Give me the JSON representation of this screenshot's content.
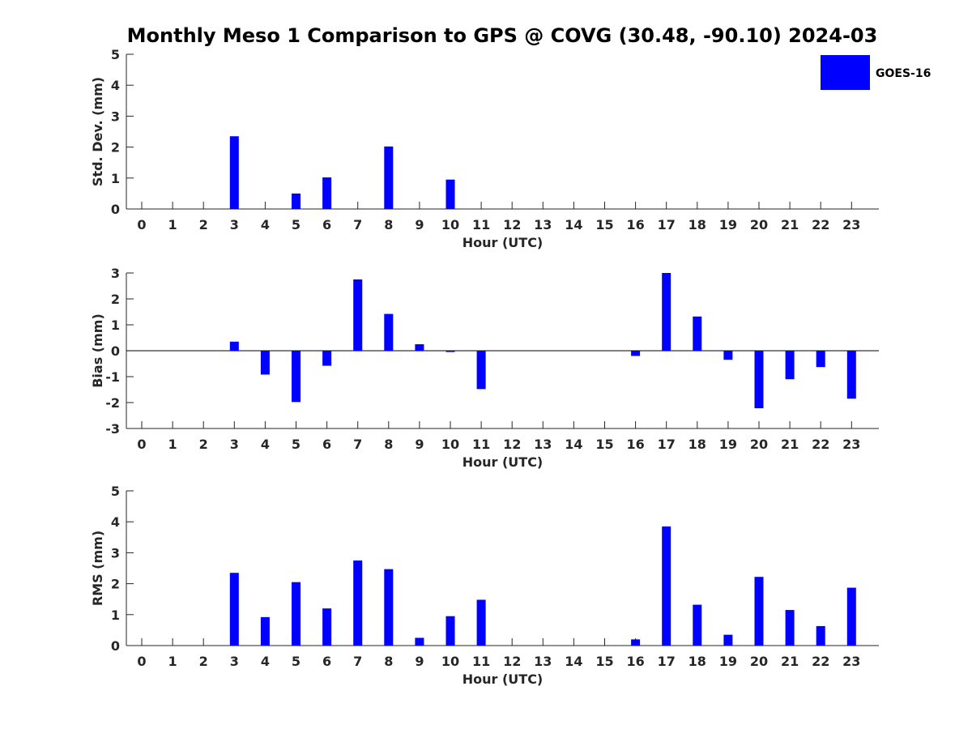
{
  "title": "Monthly Meso 1 Comparison to GPS @ COVG (30.48, -90.10) 2024-03",
  "legend": {
    "label": "GOES-16",
    "color": "#0000ff"
  },
  "chart_data": [
    {
      "type": "bar",
      "xlabel": "Hour (UTC)",
      "ylabel": "Std. Dev. (mm)",
      "ylim": [
        0,
        5
      ],
      "yticks": [
        0,
        1,
        2,
        3,
        4,
        5
      ],
      "categories": [
        "0",
        "1",
        "2",
        "3",
        "4",
        "5",
        "6",
        "7",
        "8",
        "9",
        "10",
        "11",
        "12",
        "13",
        "14",
        "15",
        "16",
        "17",
        "18",
        "19",
        "20",
        "21",
        "22",
        "23"
      ],
      "series": [
        {
          "name": "GOES-16",
          "values": [
            0,
            0,
            0,
            2.35,
            0,
            0.5,
            1.02,
            0,
            2.02,
            0,
            0.95,
            0,
            0,
            0,
            0,
            0,
            0,
            0,
            0,
            0,
            0,
            0,
            0,
            0
          ]
        }
      ]
    },
    {
      "type": "bar",
      "xlabel": "Hour (UTC)",
      "ylabel": "Bias (mm)",
      "ylim": [
        -3,
        3
      ],
      "yticks": [
        -3,
        -2,
        -1,
        0,
        1,
        2,
        3
      ],
      "categories": [
        "0",
        "1",
        "2",
        "3",
        "4",
        "5",
        "6",
        "7",
        "8",
        "9",
        "10",
        "11",
        "12",
        "13",
        "14",
        "15",
        "16",
        "17",
        "18",
        "19",
        "20",
        "21",
        "22",
        "23"
      ],
      "series": [
        {
          "name": "GOES-16",
          "values": [
            0,
            0,
            0,
            0.35,
            -0.92,
            -1.98,
            -0.58,
            2.75,
            1.42,
            0.25,
            -0.05,
            -1.48,
            0,
            0,
            0,
            0,
            -0.2,
            3.0,
            1.32,
            -0.35,
            -2.22,
            -1.1,
            -0.63,
            -1.85
          ]
        }
      ]
    },
    {
      "type": "bar",
      "xlabel": "Hour (UTC)",
      "ylabel": "RMS (mm)",
      "ylim": [
        0,
        5
      ],
      "yticks": [
        0,
        1,
        2,
        3,
        4,
        5
      ],
      "categories": [
        "0",
        "1",
        "2",
        "3",
        "4",
        "5",
        "6",
        "7",
        "8",
        "9",
        "10",
        "11",
        "12",
        "13",
        "14",
        "15",
        "16",
        "17",
        "18",
        "19",
        "20",
        "21",
        "22",
        "23"
      ],
      "series": [
        {
          "name": "GOES-16",
          "values": [
            0,
            0,
            0,
            2.35,
            0.92,
            2.05,
            1.2,
            2.75,
            2.47,
            0.25,
            0.95,
            1.48,
            0,
            0,
            0,
            0,
            0.2,
            3.85,
            1.32,
            0.35,
            2.22,
            1.15,
            0.63,
            1.87
          ]
        }
      ]
    }
  ]
}
